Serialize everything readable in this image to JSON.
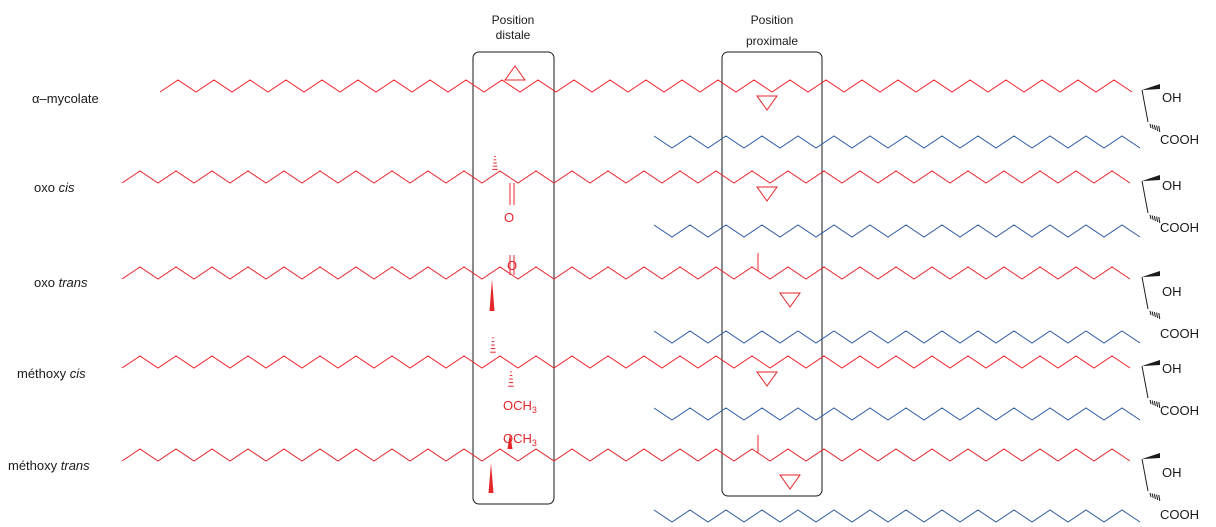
{
  "headers": {
    "distal": [
      "Position",
      "distale"
    ],
    "proximal": [
      "Position",
      "proximale"
    ]
  },
  "colors": {
    "red_chain": "#e4262b",
    "blue_chain": "#2f5aa0",
    "black": "#1a1a1a"
  },
  "rows": [
    {
      "label_plain": "α–mycolate",
      "label_italic": "",
      "distal_group": "cyclopropane",
      "proximal_group": "cyclopropane",
      "distal_text": [],
      "oh": "OH",
      "cooh": "COOH"
    },
    {
      "label_plain": "oxo ",
      "label_italic": "cis",
      "distal_group": "methyl-ketone",
      "proximal_group": "cyclopropane",
      "distal_text": [
        "O"
      ],
      "oh": "OH",
      "cooh": "COOH"
    },
    {
      "label_plain": "oxo ",
      "label_italic": "trans",
      "distal_group": "methyl-ketone",
      "proximal_group": "methyl-cyclopropane",
      "distal_text": [
        "O"
      ],
      "oh": "OH",
      "cooh": "COOH"
    },
    {
      "label_plain": "méthoxy ",
      "label_italic": "cis",
      "distal_group": "methyl-methoxy",
      "proximal_group": "cyclopropane",
      "distal_text": [
        "OCH",
        "3"
      ],
      "oh": "OH",
      "cooh": "COOH"
    },
    {
      "label_plain": "méthoxy ",
      "label_italic": "trans",
      "distal_group": "methyl-methoxy",
      "proximal_group": "methyl-cyclopropane",
      "distal_text": [
        "OCH",
        "3"
      ],
      "oh": "OH",
      "cooh": "COOH"
    }
  ]
}
